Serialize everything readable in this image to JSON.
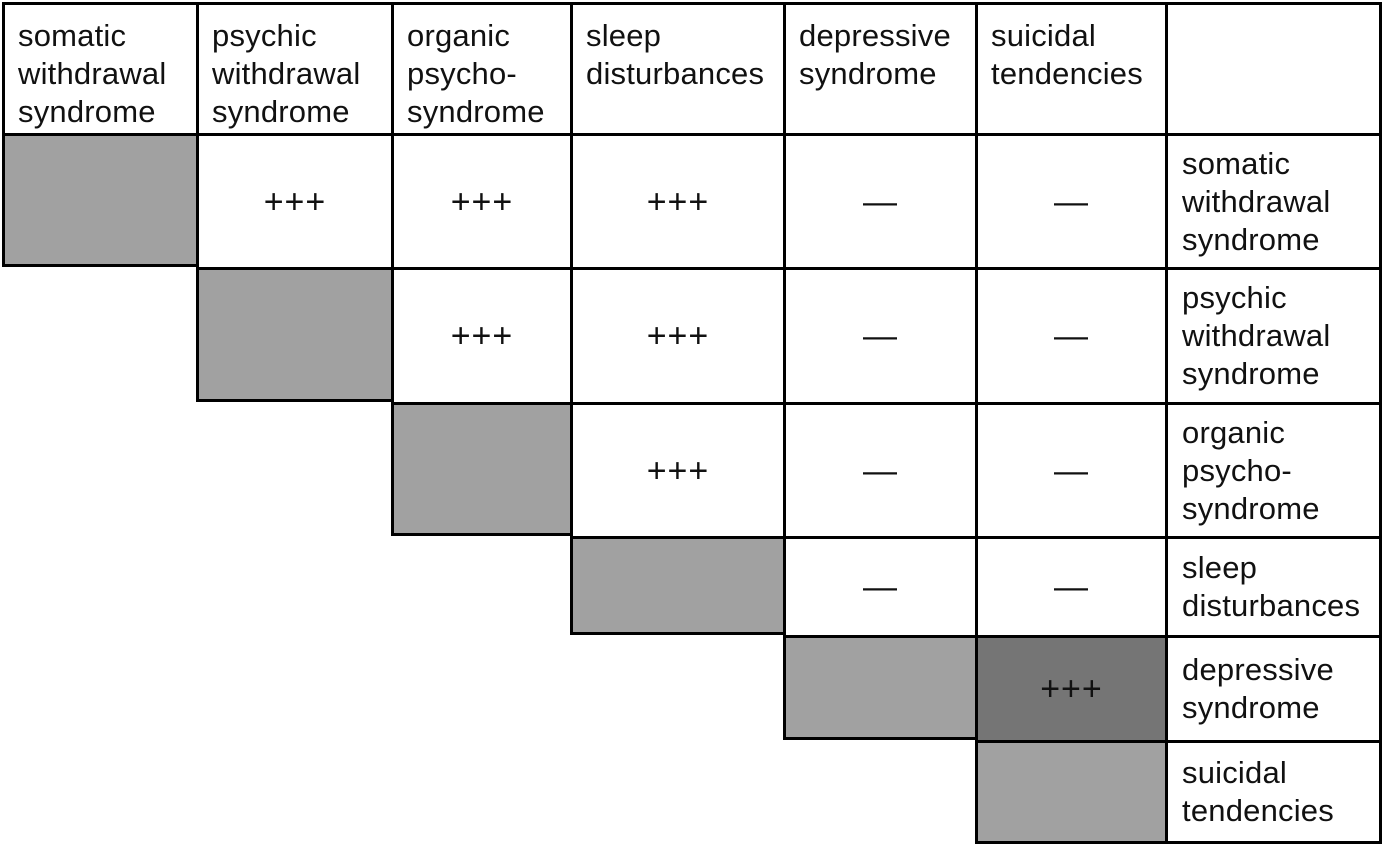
{
  "figure": {
    "grid": {
      "column_headers": [
        "somatic withdrawal syndrome",
        "psychic withdrawal syndrome",
        "organic psycho-syndrome",
        "sleep disturbances",
        "depressive syndrome",
        "suicidal tendencies",
        ""
      ],
      "rows": [
        {
          "label": "somatic withdrawal syndrome",
          "values": [
            "",
            "+++",
            "+++",
            "+++",
            "—",
            "—"
          ]
        },
        {
          "label": "psychic withdrawal syndrome",
          "values": [
            "",
            "",
            "+++",
            "+++",
            "—",
            "—"
          ]
        },
        {
          "label": "organic psycho-syndrome",
          "values": [
            "",
            "",
            "",
            "+++",
            "—",
            "—"
          ]
        },
        {
          "label": "sleep disturbances",
          "values": [
            "",
            "",
            "",
            "",
            "—",
            "—"
          ]
        },
        {
          "label": "depressive syndrome",
          "values": [
            "",
            "",
            "",
            "",
            "",
            "+++"
          ]
        },
        {
          "label": "suicidal tendencies",
          "values": [
            "",
            "",
            "",
            "",
            "",
            ""
          ]
        }
      ]
    }
  },
  "colors": {
    "page_bg": "#ffffff",
    "cell_white": "#ffffff",
    "diagonal_gray": "#a1a1a1",
    "dark_gray": "#757575",
    "border_black": "#000000",
    "text_black": "#111111"
  }
}
